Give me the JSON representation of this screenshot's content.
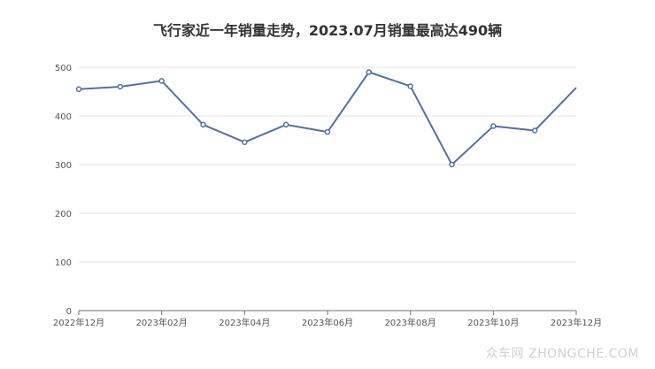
{
  "chart_data": {
    "type": "line",
    "title": "飞行家近一年销量走势，2023.07月销量最高达490辆",
    "xlabel": "",
    "ylabel": "",
    "ylim": [
      0,
      500
    ],
    "yticks": [
      0,
      100,
      200,
      300,
      400,
      500
    ],
    "x": [
      "2022-12",
      "2023-01",
      "2023-02",
      "2023-03",
      "2023-04",
      "2023-05",
      "2023-06",
      "2023-07",
      "2023-08",
      "2023-09",
      "2023-10",
      "2023-11",
      "2023-12"
    ],
    "x_tick_labels": [
      "2022年12月",
      "2023年02月",
      "2023年04月",
      "2023年06月",
      "2023年08月",
      "2023年10月",
      "2023年12月"
    ],
    "x_tick_every": 2,
    "series": [
      {
        "values": [
          455,
          460,
          472,
          382,
          346,
          382,
          367,
          490,
          461,
          300,
          379,
          370,
          458
        ],
        "color": "#5470a8"
      }
    ],
    "grid": true,
    "legend": "none"
  },
  "watermark": "众车网 ZHONGCHE.COM"
}
